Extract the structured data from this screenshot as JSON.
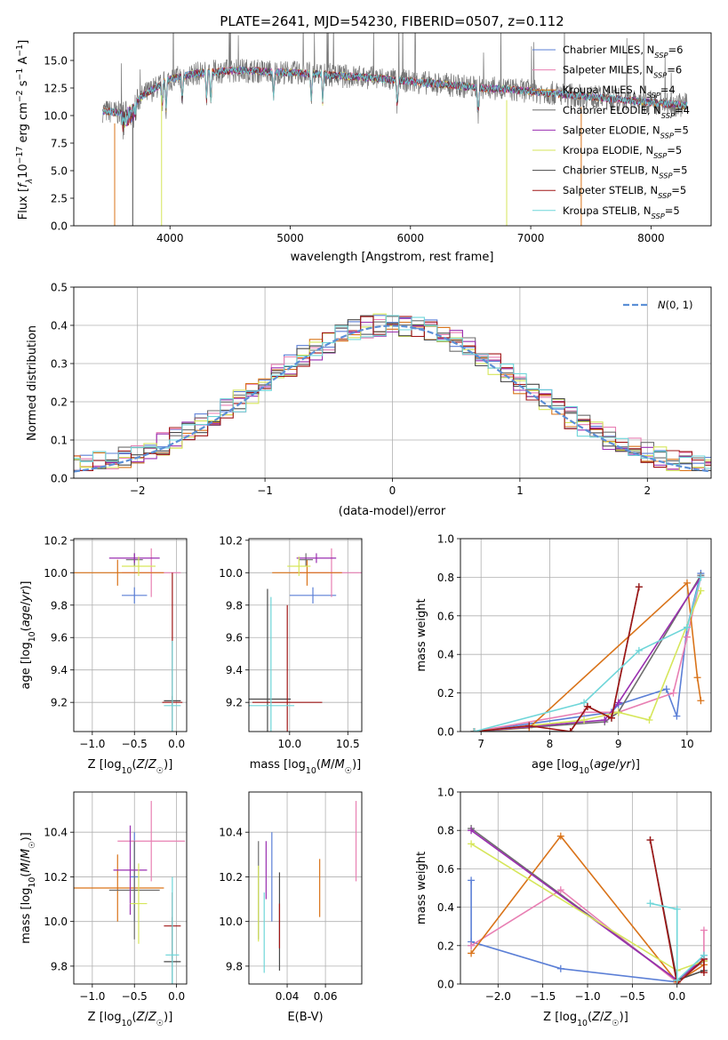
{
  "figure": {
    "title": "PLATE=2641, MJD=54230, FIBERID=0507, z=0.112"
  },
  "colors": {
    "Chabrier MILES": "#5b7fd6",
    "Salpeter MILES": "#e87fb3",
    "Kroupa MILES": "#d97319",
    "Chabrier ELODIE": "#6e6e6e",
    "Salpeter ELODIE": "#9a2eb0",
    "Kroupa ELODIE": "#d6e65a",
    "Chabrier STELIB": "#4a4a4a",
    "Salpeter STELIB": "#a01616",
    "Kroupa STELIB": "#6fd6d9"
  },
  "chart_data": [
    {
      "id": "spectrum",
      "type": "line",
      "xlabel": "wavelength [Angstrom, rest frame]",
      "ylabel": "Flux [f_λ10^-17 erg cm^-2 s^-1 A^-1]",
      "xlim": [
        3200,
        8500
      ],
      "ylim": [
        0,
        17.5
      ],
      "xticks": [
        4000,
        5000,
        6000,
        7000,
        8000
      ],
      "yticks": [
        0.0,
        2.5,
        5.0,
        7.5,
        10.0,
        12.5,
        15.0
      ],
      "legend_position": "right",
      "legend": [
        {
          "label": "Chabrier MILES, N_SSP=6",
          "color": "#5b7fd6"
        },
        {
          "label": "Salpeter MILES, N_SSP=6",
          "color": "#e87fb3"
        },
        {
          "label": "Kroupa MILES, N_SSP=4",
          "color": "#d97319"
        },
        {
          "label": "Chabrier ELODIE, N_SSP=4",
          "color": "#6e6e6e"
        },
        {
          "label": "Salpeter ELODIE, N_SSP=5",
          "color": "#9a2eb0"
        },
        {
          "label": "Kroupa ELODIE, N_SSP=5",
          "color": "#d6e65a"
        },
        {
          "label": "Chabrier STELIB, N_SSP=5",
          "color": "#4a4a4a"
        },
        {
          "label": "Salpeter STELIB, N_SSP=5",
          "color": "#a01616"
        },
        {
          "label": "Kroupa STELIB, N_SSP=5",
          "color": "#6fd6d9"
        }
      ],
      "continuum": {
        "x": [
          3400,
          3600,
          3800,
          4000,
          4200,
          4400,
          4600,
          4800,
          5000,
          5200,
          5400,
          5600,
          5800,
          6000,
          6200,
          6400,
          6600,
          6800,
          7000,
          7200,
          7400,
          7600,
          7800,
          8000,
          8200,
          8300
        ],
        "y": [
          10.5,
          10.2,
          12.0,
          13.3,
          13.8,
          14.0,
          14.1,
          14.0,
          13.9,
          13.8,
          13.6,
          13.5,
          13.3,
          13.1,
          12.9,
          12.7,
          12.5,
          12.4,
          12.2,
          12.0,
          11.8,
          11.6,
          11.4,
          11.2,
          11.0,
          10.9
        ]
      },
      "features": [
        {
          "x": 3540,
          "y": 0,
          "series": "Kroupa MILES"
        },
        {
          "x": 3690,
          "y": 0,
          "series": "Chabrier STELIB"
        },
        {
          "x": 3930,
          "y": 0,
          "series": "Kroupa ELODIE"
        },
        {
          "x": 6800,
          "y": 0,
          "series": "Kroupa ELODIE"
        },
        {
          "x": 7420,
          "y": 0,
          "series": "Kroupa MILES"
        }
      ]
    },
    {
      "id": "residual_hist",
      "type": "histogram",
      "xlabel": "(data-model)/error",
      "ylabel": "Normed distribution",
      "xlim": [
        -2.5,
        2.5
      ],
      "ylim": [
        0,
        0.5
      ],
      "xticks": [
        -2,
        -1,
        0,
        1,
        2
      ],
      "yticks": [
        0.0,
        0.1,
        0.2,
        0.3,
        0.4,
        0.5
      ],
      "bin_width": 0.1,
      "gaussian_label": "N(0, 1)",
      "gaussian_color": "#5b8fd6",
      "legend_position": "top-right"
    },
    {
      "id": "age_vs_Z",
      "type": "errorbar",
      "xlabel": "Z [log10(Z/Z☉)]",
      "ylabel": "age [log10(age/yr)]",
      "xlim": [
        -1.22,
        0.12
      ],
      "ylim": [
        9.02,
        10.21
      ],
      "xticks": [
        -1.0,
        -0.5,
        0.0
      ],
      "yticks": [
        9.2,
        9.4,
        9.6,
        9.8,
        10.0,
        10.2
      ],
      "points": [
        {
          "series": "Chabrier MILES",
          "x": -0.5,
          "xerr": 0.15,
          "y": 9.86,
          "yerr": 0.05
        },
        {
          "series": "Salpeter MILES",
          "x": -0.3,
          "xerr": 0.35,
          "y": 10.0,
          "yerr": 0.15
        },
        {
          "series": "Kroupa MILES",
          "x": -0.7,
          "xerr": 0.55,
          "y": 10.0,
          "yerr": 0.08
        },
        {
          "series": "Chabrier ELODIE",
          "x": -0.5,
          "xerr": 0.1,
          "y": 10.08,
          "yerr": 0.04
        },
        {
          "series": "Salpeter ELODIE",
          "x": -0.5,
          "xerr": 0.3,
          "y": 10.09,
          "yerr": 0.03
        },
        {
          "series": "Kroupa ELODIE",
          "x": -0.45,
          "xerr": 0.2,
          "y": 10.04,
          "yerr": 0.06
        },
        {
          "series": "Chabrier STELIB",
          "x": -0.05,
          "xerr": 0.1,
          "y": 9.21,
          "yerr": 0.03
        },
        {
          "series": "Salpeter STELIB",
          "x": -0.05,
          "xerr": 0.12,
          "y": 9.2,
          "yerr": 0.8
        },
        {
          "series": "Kroupa STELIB",
          "x": -0.05,
          "xerr": 0.1,
          "y": 9.18,
          "yerr": 0.4
        }
      ]
    },
    {
      "id": "age_vs_mass",
      "type": "errorbar",
      "xlabel": "mass [log10(M/M☉)]",
      "ylabel": "",
      "xlim": [
        9.65,
        10.62
      ],
      "ylim": [
        9.02,
        10.21
      ],
      "xticks": [
        10.0,
        10.5
      ],
      "yticks": [
        9.2,
        9.4,
        9.6,
        9.8,
        10.0,
        10.2
      ],
      "points": [
        {
          "series": "Chabrier MILES",
          "x": 10.2,
          "xerr": 0.2,
          "y": 9.86,
          "yerr": 0.05
        },
        {
          "series": "Salpeter MILES",
          "x": 10.36,
          "xerr": 0.3,
          "y": 10.0,
          "yerr": 0.15
        },
        {
          "series": "Kroupa MILES",
          "x": 10.15,
          "xerr": 0.3,
          "y": 10.0,
          "yerr": 0.08
        },
        {
          "series": "Chabrier ELODIE",
          "x": 10.14,
          "xerr": 0.06,
          "y": 10.08,
          "yerr": 0.04
        },
        {
          "series": "Salpeter ELODIE",
          "x": 10.23,
          "xerr": 0.17,
          "y": 10.09,
          "yerr": 0.03
        },
        {
          "series": "Kroupa ELODIE",
          "x": 10.08,
          "xerr": 0.1,
          "y": 10.04,
          "yerr": 0.06
        },
        {
          "series": "Chabrier STELIB",
          "x": 9.81,
          "xerr": 0.2,
          "y": 9.22,
          "yerr": 0.68
        },
        {
          "series": "Salpeter STELIB",
          "x": 9.98,
          "xerr": 0.3,
          "y": 9.2,
          "yerr": 0.6
        },
        {
          "series": "Kroupa STELIB",
          "x": 9.84,
          "xerr": 0.2,
          "y": 9.18,
          "yerr": 0.67
        }
      ]
    },
    {
      "id": "weight_vs_age",
      "type": "line",
      "xlabel": "age [log10(age/yr)]",
      "ylabel": "mass weight",
      "xlim": [
        6.7,
        10.35
      ],
      "ylim": [
        0,
        1
      ],
      "xticks": [
        7,
        8,
        9,
        10
      ],
      "yticks": [
        0.0,
        0.2,
        0.4,
        0.6,
        0.8,
        1.0
      ],
      "series": [
        {
          "name": "Chabrier MILES",
          "x": [
            6.9,
            8.9,
            9.0,
            9.7,
            9.85,
            10.0,
            10.2
          ],
          "y": [
            0.0,
            0.1,
            0.14,
            0.22,
            0.08,
            0.54,
            0.82
          ]
        },
        {
          "name": "Salpeter MILES",
          "x": [
            6.9,
            8.5,
            9.0,
            9.8,
            10.0,
            10.2
          ],
          "y": [
            0.0,
            0.1,
            0.1,
            0.2,
            0.49,
            0.8
          ]
        },
        {
          "name": "Kroupa MILES",
          "x": [
            6.9,
            7.7,
            10.0,
            10.15,
            10.2
          ],
          "y": [
            0.0,
            0.02,
            0.77,
            0.28,
            0.16
          ]
        },
        {
          "name": "Chabrier ELODIE",
          "x": [
            6.9,
            8.8,
            9.0,
            10.2
          ],
          "y": [
            0.0,
            0.05,
            0.1,
            0.81
          ]
        },
        {
          "name": "Salpeter ELODIE",
          "x": [
            6.9,
            8.8,
            9.0,
            10.2
          ],
          "y": [
            0.0,
            0.06,
            0.15,
            0.8
          ]
        },
        {
          "name": "Kroupa ELODIE",
          "x": [
            6.9,
            8.5,
            9.0,
            9.45,
            10.2
          ],
          "y": [
            0.0,
            0.06,
            0.1,
            0.06,
            0.73
          ]
        },
        {
          "name": "Chabrier STELIB",
          "x": [
            6.9,
            8.3,
            8.55,
            8.9,
            9.3
          ],
          "y": [
            0.0,
            0.0,
            0.13,
            0.07,
            0.75
          ]
        },
        {
          "name": "Salpeter STELIB",
          "x": [
            6.9,
            7.7,
            8.3,
            8.55,
            8.9,
            9.3
          ],
          "y": [
            0.0,
            0.03,
            0.0,
            0.13,
            0.07,
            0.75
          ]
        },
        {
          "name": "Kroupa STELIB",
          "x": [
            6.9,
            8.5,
            9.3,
            10.0,
            10.2
          ],
          "y": [
            0.0,
            0.15,
            0.42,
            0.54,
            0.8
          ]
        }
      ]
    },
    {
      "id": "mass_vs_Z",
      "type": "errorbar",
      "xlabel": "Z [log10(Z/Z☉)]",
      "ylabel": "mass [log10(M/M☉)]",
      "xlim": [
        -1.22,
        0.12
      ],
      "ylim": [
        9.72,
        10.58
      ],
      "xticks": [
        -1.0,
        -0.5,
        0.0
      ],
      "yticks": [
        9.8,
        10.0,
        10.2,
        10.4
      ],
      "points": [
        {
          "series": "Chabrier MILES",
          "x": -0.5,
          "xerr": 0.05,
          "y": 10.2,
          "yerr": 0.2
        },
        {
          "series": "Salpeter MILES",
          "x": -0.3,
          "xerr": 0.4,
          "y": 10.36,
          "yerr": 0.18
        },
        {
          "series": "Kroupa MILES",
          "x": -0.7,
          "xerr": 0.55,
          "y": 10.15,
          "yerr": 0.15
        },
        {
          "series": "Chabrier ELODIE",
          "x": -0.5,
          "xerr": 0.3,
          "y": 10.14,
          "yerr": 0.22
        },
        {
          "series": "Salpeter ELODIE",
          "x": -0.55,
          "xerr": 0.2,
          "y": 10.23,
          "yerr": 0.2
        },
        {
          "series": "Kroupa ELODIE",
          "x": -0.45,
          "xerr": 0.1,
          "y": 10.08,
          "yerr": 0.18
        },
        {
          "series": "Chabrier STELIB",
          "x": -0.05,
          "xerr": 0.1,
          "y": 9.82,
          "yerr": 0.2
        },
        {
          "series": "Salpeter STELIB",
          "x": -0.05,
          "xerr": 0.1,
          "y": 9.98,
          "yerr": 0.15
        },
        {
          "series": "Kroupa STELIB",
          "x": -0.05,
          "xerr": 0.08,
          "y": 9.85,
          "yerr": 0.35
        }
      ]
    },
    {
      "id": "mass_vs_ebv",
      "type": "errorbar",
      "xlabel": "E(B-V)",
      "ylabel": "",
      "xlim": [
        0.02,
        0.079
      ],
      "ylim": [
        9.72,
        10.58
      ],
      "xticks": [
        0.04,
        0.06
      ],
      "yticks": [
        9.8,
        10.0,
        10.2,
        10.4
      ],
      "points": [
        {
          "series": "Chabrier MILES",
          "x": 0.032,
          "y": 10.2,
          "yerr": 0.2
        },
        {
          "series": "Salpeter MILES",
          "x": 0.076,
          "y": 10.36,
          "yerr": 0.18
        },
        {
          "series": "Kroupa MILES",
          "x": 0.057,
          "y": 10.15,
          "yerr": 0.13
        },
        {
          "series": "Chabrier ELODIE",
          "x": 0.025,
          "y": 10.14,
          "yerr": 0.22
        },
        {
          "series": "Salpeter ELODIE",
          "x": 0.029,
          "y": 10.23,
          "yerr": 0.13
        },
        {
          "series": "Kroupa ELODIE",
          "x": 0.025,
          "y": 10.08,
          "yerr": 0.17
        },
        {
          "series": "Chabrier STELIB",
          "x": 0.036,
          "y": 10.0,
          "yerr": 0.22
        },
        {
          "series": "Salpeter STELIB",
          "x": 0.036,
          "y": 9.98,
          "yerr": 0.1
        },
        {
          "series": "Kroupa STELIB",
          "x": 0.028,
          "y": 9.95,
          "yerr": 0.18
        }
      ]
    },
    {
      "id": "weight_vs_Z",
      "type": "line",
      "xlabel": "Z [log10(Z/Z☉)]",
      "ylabel": "mass weight",
      "xlim": [
        -2.42,
        0.38
      ],
      "ylim": [
        0,
        1
      ],
      "xticks": [
        -2.0,
        -1.5,
        -1.0,
        -0.5,
        0.0
      ],
      "yticks": [
        0.0,
        0.2,
        0.4,
        0.6,
        0.8,
        1.0
      ],
      "series": [
        {
          "name": "Chabrier MILES",
          "x": [
            -2.3,
            -2.3,
            -2.3,
            -1.3,
            0.0,
            0.3
          ],
          "y": [
            0.54,
            0.2,
            0.22,
            0.08,
            0.01,
            0.15
          ]
        },
        {
          "name": "Salpeter MILES",
          "x": [
            -2.3,
            -1.3,
            0.0,
            0.3,
            0.3
          ],
          "y": [
            0.2,
            0.49,
            0.01,
            0.12,
            0.28
          ]
        },
        {
          "name": "Kroupa MILES",
          "x": [
            -2.3,
            -1.3,
            0.0,
            0.3
          ],
          "y": [
            0.16,
            0.77,
            0.01,
            0.1
          ]
        },
        {
          "name": "Chabrier ELODIE",
          "x": [
            -2.3,
            0.0,
            0.3
          ],
          "y": [
            0.81,
            0.02,
            0.12
          ]
        },
        {
          "name": "Salpeter ELODIE",
          "x": [
            -2.3,
            0.0,
            0.3
          ],
          "y": [
            0.8,
            0.02,
            0.13
          ]
        },
        {
          "name": "Kroupa ELODIE",
          "x": [
            -2.3,
            0.0,
            0.3
          ],
          "y": [
            0.73,
            0.07,
            0.12
          ]
        },
        {
          "name": "Chabrier STELIB",
          "x": [
            -0.3,
            0.0,
            0.3
          ],
          "y": [
            0.75,
            0.02,
            0.07
          ]
        },
        {
          "name": "Salpeter STELIB",
          "x": [
            -0.3,
            0.0,
            0.3,
            0.3
          ],
          "y": [
            0.75,
            0.0,
            0.13,
            0.06
          ]
        },
        {
          "name": "Kroupa STELIB",
          "x": [
            -0.3,
            0.0,
            0.0,
            0.3
          ],
          "y": [
            0.42,
            0.39,
            0.02,
            0.15
          ]
        }
      ]
    }
  ]
}
